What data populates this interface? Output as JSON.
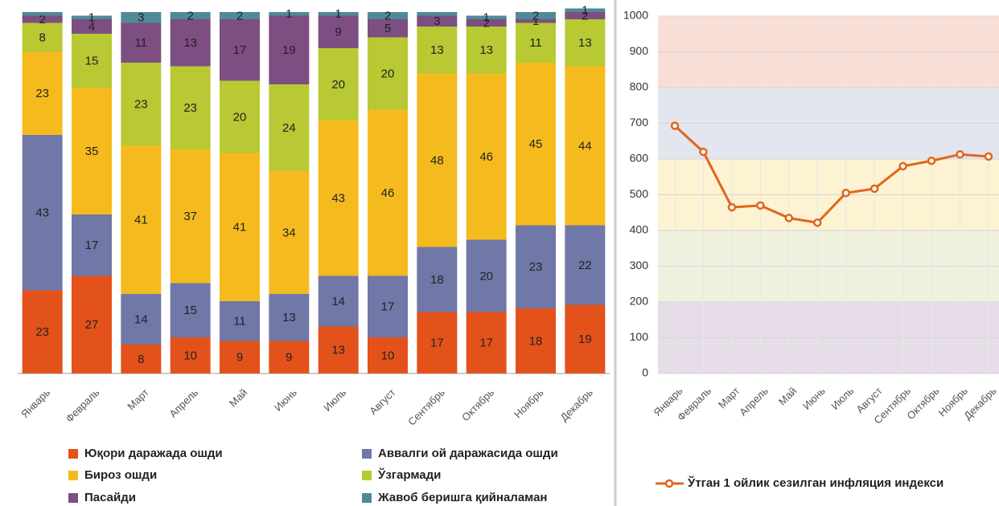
{
  "chart_data": [
    {
      "type": "stacked-bar",
      "categories": [
        "Январь",
        "Февраль",
        "Март",
        "Апрель",
        "Май",
        "Июнь",
        "Июль",
        "Август",
        "Сентябрь",
        "Октябрь",
        "Ноябрь",
        "Декабрь"
      ],
      "ylim": [
        0,
        100
      ],
      "series": [
        {
          "name": "Юқори даражада ошди",
          "color": "#e4521b",
          "values": [
            23,
            27,
            8,
            10,
            9,
            9,
            13,
            10,
            17,
            17,
            18,
            19
          ]
        },
        {
          "name": "Аввалги ой даражасида ошди",
          "color": "#7078a8",
          "values": [
            43,
            17,
            14,
            15,
            11,
            13,
            14,
            17,
            18,
            20,
            23,
            22
          ]
        },
        {
          "name": "Бироз ошди",
          "color": "#f5bb1e",
          "values": [
            23,
            35,
            41,
            37,
            41,
            34,
            43,
            46,
            48,
            46,
            45,
            44
          ]
        },
        {
          "name": "Ўзгармади",
          "color": "#b8c934",
          "values": [
            8,
            15,
            23,
            23,
            20,
            24,
            20,
            20,
            13,
            13,
            11,
            13
          ]
        },
        {
          "name": "Пасайди",
          "color": "#7d4e82",
          "values": [
            2,
            4,
            11,
            13,
            17,
            19,
            9,
            5,
            3,
            2,
            1,
            2
          ]
        },
        {
          "name": "Жавоб беришга қийналаман",
          "color": "#4f8a96",
          "values": [
            1,
            1,
            3,
            2,
            2,
            1,
            1,
            2,
            1,
            1,
            2,
            1
          ],
          "value_labels": [
            null,
            "1",
            "3",
            "2",
            "2",
            "1",
            "1",
            "2",
            null,
            "1",
            "2",
            "1"
          ]
        }
      ]
    },
    {
      "type": "line",
      "categories": [
        "Январь",
        "Февраль",
        "Март",
        "Апрель",
        "Май",
        "Июнь",
        "Июль",
        "Август",
        "Сентябрь",
        "Октябрь",
        "Ноябрь",
        "Декабрь"
      ],
      "series": [
        {
          "name": "Ўтган 1 ойлик сезилган инфляция индекси",
          "color": "#e0661c",
          "values": [
            693,
            620,
            465,
            470,
            435,
            422,
            505,
            517,
            580,
            595,
            613,
            607
          ]
        }
      ],
      "ylim": [
        0,
        1000
      ],
      "yticks": [
        0,
        100,
        200,
        300,
        400,
        500,
        600,
        700,
        800,
        900,
        1000
      ],
      "bands": [
        {
          "from": 0,
          "to": 200,
          "color": "#e6dde8"
        },
        {
          "from": 200,
          "to": 400,
          "color": "#eff1de"
        },
        {
          "from": 400,
          "to": 600,
          "color": "#fdf2d2"
        },
        {
          "from": 600,
          "to": 800,
          "color": "#e3e6ef"
        },
        {
          "from": 800,
          "to": 1000,
          "color": "#f9ded6"
        }
      ]
    }
  ]
}
